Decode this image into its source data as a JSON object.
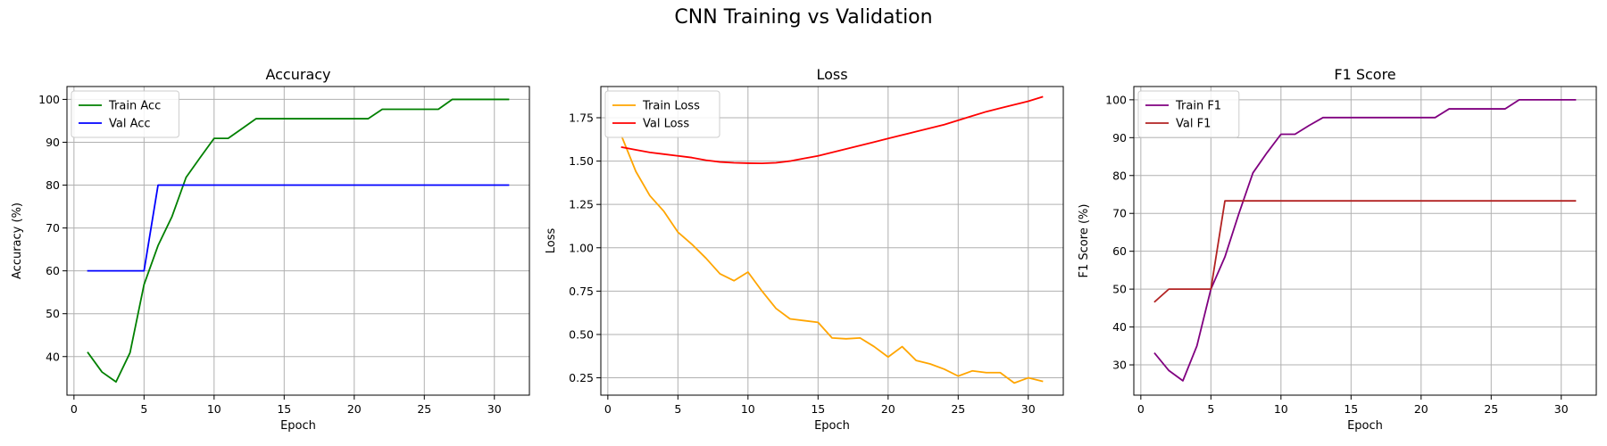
{
  "figure": {
    "title": "CNN Training vs Validation"
  },
  "chart_data": [
    {
      "type": "line",
      "title": "Accuracy",
      "xlabel": "Epoch",
      "ylabel": "Accuracy (%)",
      "xlim": [
        -0.5,
        32.5
      ],
      "ylim": [
        31,
        103
      ],
      "xticks": [
        0,
        5,
        10,
        15,
        20,
        25,
        30
      ],
      "yticks": [
        40,
        50,
        60,
        70,
        80,
        90,
        100
      ],
      "grid": true,
      "legend_position": "upper-left",
      "x": [
        1,
        2,
        3,
        4,
        5,
        6,
        7,
        8,
        9,
        10,
        11,
        12,
        13,
        14,
        15,
        16,
        17,
        18,
        19,
        20,
        21,
        22,
        23,
        24,
        25,
        26,
        27,
        28,
        29,
        30,
        31
      ],
      "series": [
        {
          "name": "Train Acc",
          "color": "#008000",
          "values": [
            40.9,
            36.4,
            34.1,
            40.9,
            56.8,
            65.9,
            72.7,
            81.8,
            86.4,
            90.9,
            90.9,
            93.2,
            95.5,
            95.5,
            95.5,
            95.5,
            95.5,
            95.5,
            95.5,
            95.5,
            95.5,
            97.7,
            97.7,
            97.7,
            97.7,
            97.7,
            100,
            100,
            100,
            100,
            100
          ]
        },
        {
          "name": "Val Acc",
          "color": "#0000ff",
          "values": [
            60,
            60,
            60,
            60,
            60,
            80,
            80,
            80,
            80,
            80,
            80,
            80,
            80,
            80,
            80,
            80,
            80,
            80,
            80,
            80,
            80,
            80,
            80,
            80,
            80,
            80,
            80,
            80,
            80,
            80,
            80
          ]
        }
      ]
    },
    {
      "type": "line",
      "title": "Loss",
      "xlabel": "Epoch",
      "ylabel": "Loss",
      "xlim": [
        -0.5,
        32.5
      ],
      "ylim": [
        0.15,
        1.93
      ],
      "xticks": [
        0,
        5,
        10,
        15,
        20,
        25,
        30
      ],
      "yticks": [
        0.25,
        0.5,
        0.75,
        1.0,
        1.25,
        1.5,
        1.75
      ],
      "ytick_format": "fixed2",
      "grid": true,
      "legend_position": "upper-left",
      "x": [
        1,
        2,
        3,
        4,
        5,
        6,
        7,
        8,
        9,
        10,
        11,
        12,
        13,
        14,
        15,
        16,
        17,
        18,
        19,
        20,
        21,
        22,
        23,
        24,
        25,
        26,
        27,
        28,
        29,
        30,
        31
      ],
      "series": [
        {
          "name": "Train Loss",
          "color": "#ffa500",
          "values": [
            1.64,
            1.44,
            1.3,
            1.21,
            1.09,
            1.02,
            0.94,
            0.85,
            0.81,
            0.86,
            0.75,
            0.65,
            0.59,
            0.58,
            0.57,
            0.48,
            0.475,
            0.48,
            0.43,
            0.37,
            0.43,
            0.35,
            0.33,
            0.3,
            0.26,
            0.29,
            0.28,
            0.28,
            0.22,
            0.25,
            0.23
          ]
        },
        {
          "name": "Val Loss",
          "color": "#ff0000",
          "values": [
            1.58,
            1.565,
            1.55,
            1.54,
            1.53,
            1.52,
            1.505,
            1.495,
            1.49,
            1.488,
            1.487,
            1.49,
            1.5,
            1.515,
            1.53,
            1.55,
            1.57,
            1.59,
            1.61,
            1.63,
            1.65,
            1.67,
            1.69,
            1.71,
            1.735,
            1.76,
            1.785,
            1.805,
            1.825,
            1.845,
            1.87
          ]
        }
      ]
    },
    {
      "type": "line",
      "title": "F1 Score",
      "xlabel": "Epoch",
      "ylabel": "F1 Score (%)",
      "xlim": [
        -0.5,
        32.5
      ],
      "ylim": [
        22,
        103.5
      ],
      "xticks": [
        0,
        5,
        10,
        15,
        20,
        25,
        30
      ],
      "yticks": [
        30,
        40,
        50,
        60,
        70,
        80,
        90,
        100
      ],
      "grid": true,
      "legend_position": "upper-left",
      "x": [
        1,
        2,
        3,
        4,
        5,
        6,
        7,
        8,
        9,
        10,
        11,
        12,
        13,
        14,
        15,
        16,
        17,
        18,
        19,
        20,
        21,
        22,
        23,
        24,
        25,
        26,
        27,
        28,
        29,
        30,
        31
      ],
      "series": [
        {
          "name": "Train F1",
          "color": "#800080",
          "values": [
            33,
            28.5,
            25.8,
            35,
            50,
            58.5,
            70,
            80.7,
            86,
            90.9,
            90.9,
            93.2,
            95.3,
            95.3,
            95.3,
            95.3,
            95.3,
            95.3,
            95.3,
            95.3,
            95.3,
            97.6,
            97.6,
            97.6,
            97.6,
            97.6,
            100,
            100,
            100,
            100,
            100
          ]
        },
        {
          "name": "Val F1",
          "color": "#b22222",
          "values": [
            46.7,
            50,
            50,
            50,
            50,
            73.3,
            73.3,
            73.3,
            73.3,
            73.3,
            73.3,
            73.3,
            73.3,
            73.3,
            73.3,
            73.3,
            73.3,
            73.3,
            73.3,
            73.3,
            73.3,
            73.3,
            73.3,
            73.3,
            73.3,
            73.3,
            73.3,
            73.3,
            73.3,
            73.3,
            73.3
          ]
        }
      ]
    }
  ]
}
